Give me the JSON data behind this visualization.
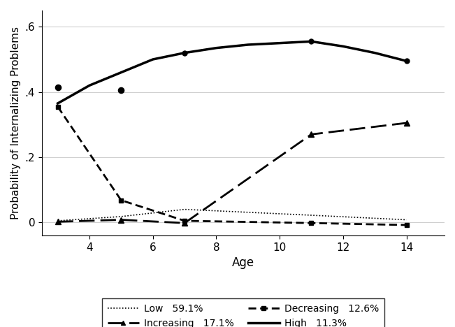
{
  "ages": [
    3,
    5,
    7,
    11,
    14
  ],
  "low": {
    "y": [
      0.005,
      0.018,
      0.04,
      0.022,
      0.008
    ],
    "color": "black",
    "linewidth": 1.2
  },
  "decreasing": {
    "y": [
      0.355,
      0.068,
      0.005,
      -0.002,
      -0.008
    ],
    "color": "black",
    "linewidth": 2.0
  },
  "increasing": {
    "y": [
      0.002,
      0.008,
      -0.002,
      0.27,
      0.305
    ],
    "color": "black",
    "linewidth": 2.0
  },
  "high_smooth_x": [
    3,
    4,
    5,
    6,
    7,
    8,
    9,
    10,
    11,
    12,
    13,
    14
  ],
  "high_smooth_y": [
    0.365,
    0.42,
    0.46,
    0.5,
    0.52,
    0.535,
    0.545,
    0.55,
    0.555,
    0.54,
    0.52,
    0.495
  ],
  "high_markers": {
    "ages": [
      7,
      11,
      14
    ],
    "y": [
      0.52,
      0.555,
      0.495
    ]
  },
  "scatter_high": {
    "ages": [
      3,
      5
    ],
    "y": [
      0.415,
      0.405
    ]
  },
  "xlabel": "Age",
  "ylabel": "Probability of Internalizing Problems",
  "xlim": [
    2.5,
    15.2
  ],
  "ylim": [
    -0.04,
    0.65
  ],
  "xticks": [
    4,
    6,
    8,
    10,
    12,
    14
  ],
  "yticks": [
    0.0,
    0.2,
    0.4,
    0.6
  ],
  "ytick_labels": [
    "0",
    ".2",
    ".4",
    ".6"
  ],
  "grid_color": "#d0d0d0",
  "background_color": "white",
  "legend_entries": [
    {
      "label": "Low   59.1%",
      "style": "dotted",
      "linewidth": 1.2,
      "marker": null
    },
    {
      "label": "Increasing   17.1%",
      "style": "long_dash",
      "linewidth": 2.0,
      "marker": "^"
    },
    {
      "label": "Decreasing   12.6%",
      "style": "short_dash",
      "linewidth": 2.0,
      "marker": "s"
    },
    {
      "label": "High   11.3%",
      "style": "solid",
      "linewidth": 2.5,
      "marker": null
    }
  ]
}
